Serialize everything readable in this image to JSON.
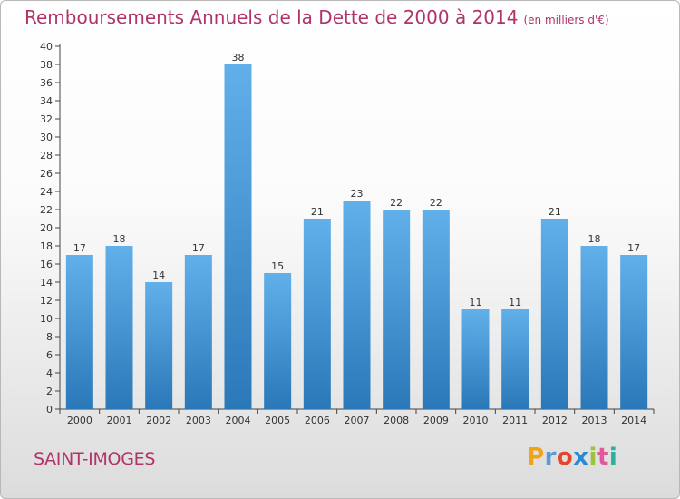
{
  "title": "Remboursements Annuels de la Dette de 2000 à 2014",
  "unit_note": "(en milliers d'€)",
  "commune": "SAINT-IMOGES",
  "logo": {
    "letters": [
      "P",
      "r",
      "o",
      "x",
      "i",
      "t",
      "i"
    ],
    "colors": [
      "#f2a419",
      "#5a9bd6",
      "#e8442c",
      "#2a8ad0",
      "#9bc43a",
      "#e05a9a",
      "#2bb0a0"
    ]
  },
  "colors": {
    "bar_top": "#62b0ea",
    "bar_bottom": "#2a78b8",
    "title": "#b0336a"
  },
  "chart_data": {
    "type": "bar",
    "categories": [
      "2000",
      "2001",
      "2002",
      "2003",
      "2004",
      "2005",
      "2006",
      "2007",
      "2008",
      "2009",
      "2010",
      "2011",
      "2012",
      "2013",
      "2014"
    ],
    "values": [
      17,
      18,
      14,
      17,
      38,
      15,
      21,
      23,
      22,
      22,
      11,
      11,
      21,
      18,
      17
    ],
    "ylim": [
      0,
      40
    ],
    "ytick_step": 2,
    "grid": false
  }
}
